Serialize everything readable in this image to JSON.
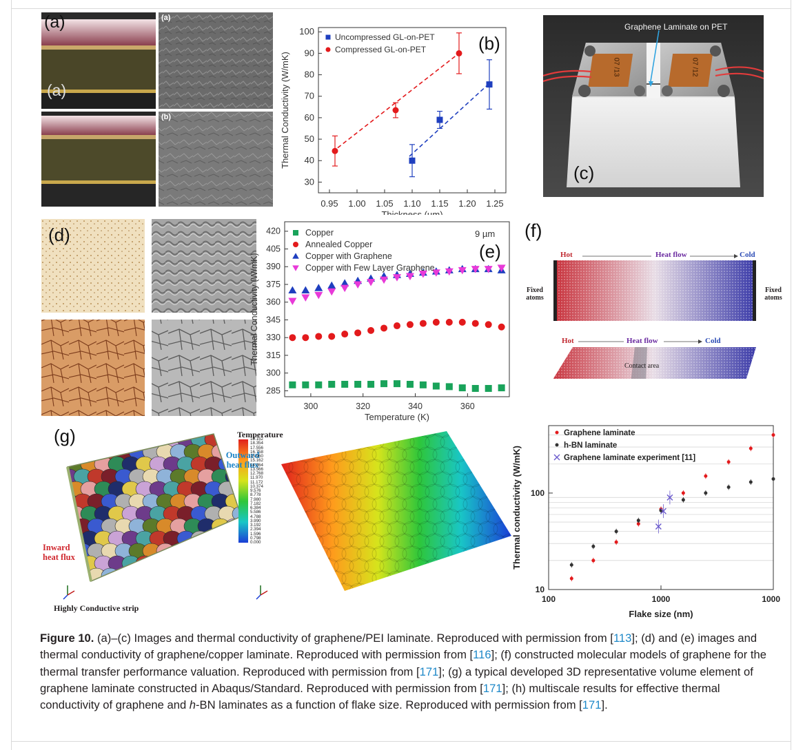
{
  "figure": {
    "caption": {
      "label": "Figure 10.",
      "parts": [
        {
          "t": "(a)–(c) Images and thermal conductivity of graphene/PEI laminate. Reproduced with permission from [",
          "ref": false
        },
        {
          "t": "113",
          "ref": true
        },
        {
          "t": "]; (d) and (e) images and thermal conductivity of graphene/copper laminate. Reproduced with permission from [",
          "ref": false
        },
        {
          "t": "116",
          "ref": true
        },
        {
          "t": "]; (f) constructed molecular models of graphene for the thermal transfer performance valuation. Reproduced with permission from [",
          "ref": false
        },
        {
          "t": "171",
          "ref": true
        },
        {
          "t": "]; (g) a typical developed 3D representative volume element of graphene laminate constructed in Abaqus/Standard. Reproduced with permission from [",
          "ref": false
        },
        {
          "t": "171",
          "ref": true
        },
        {
          "t": "]; (h) multiscale results for effective thermal conductivity of graphene and ",
          "ref": false
        },
        {
          "t": "h",
          "ref": false,
          "italic": true
        },
        {
          "t": "-BN laminates as a function of flake size. Reproduced with permission from [",
          "ref": false
        },
        {
          "t": "171",
          "ref": true
        },
        {
          "t": "].",
          "ref": false
        }
      ]
    },
    "panel_a": {
      "label": "(a)",
      "inner_label": "(a)",
      "sub_a": "(a)",
      "sub_b": "(b)"
    },
    "panel_c": {
      "label": "(c)",
      "annotation": "Graphene Laminate on PET",
      "heater_text_1": "07 /13",
      "heater_text_2": "07 /12"
    },
    "panel_d": {
      "label": "(d)"
    },
    "panel_f": {
      "label": "(f)",
      "top": {
        "hot": "Hot",
        "flow": "Heat flow",
        "cold": "Cold",
        "fixed_left": "Fixed atoms",
        "fixed_right": "Fixed atoms"
      },
      "bottom": {
        "hot": "Hot",
        "flow": "Heat flow",
        "cold": "Cold",
        "contact": "Contact area"
      }
    },
    "panel_g": {
      "label": "(g)",
      "outward": "Outward heat flux",
      "inward": "Inward heat flux",
      "strip": "Highly Conductive strip",
      "legend_title": "Temperature",
      "legend_values": [
        "19.152",
        "18.354",
        "17.556",
        "16.758",
        "15.960",
        "15.162",
        "14.364",
        "13.566",
        "12.768",
        "11.970",
        "11.172",
        "10.374",
        "9.576",
        "8.778",
        "7.980",
        "7.182",
        "6.384",
        "5.586",
        "4.788",
        "3.990",
        "3.192",
        "2.394",
        "1.596",
        "0.798",
        "0.000"
      ]
    },
    "colors": {
      "red": "#e31a1c",
      "blue": "#1f3fbf",
      "green": "#19a35a",
      "magenta": "#e83ad8",
      "ref": "#1e88c8"
    }
  },
  "chart_data": [
    {
      "id": "b",
      "panel_label": "(b)",
      "type": "scatter",
      "xlabel": "Thickness (µm)",
      "ylabel": "Thermal Conductivity (W/mK)",
      "xlim": [
        0.93,
        1.27
      ],
      "ylim": [
        25,
        102
      ],
      "xticks": [
        "0.95",
        "1.00",
        "1.05",
        "1.10",
        "1.15",
        "1.20",
        "1.25"
      ],
      "yticks": [
        "30",
        "40",
        "50",
        "60",
        "70",
        "80",
        "90",
        "100"
      ],
      "legend_position": "top-left",
      "series": [
        {
          "name": "Uncompressed GL-on-PET",
          "color": "#1f3fbf",
          "marker": "square",
          "x": [
            1.1,
            1.15,
            1.24
          ],
          "y": [
            40,
            59,
            75.5
          ],
          "err": [
            7.5,
            4,
            11.5
          ]
        },
        {
          "name": "Compressed GL-on-PET",
          "color": "#e31a1c",
          "marker": "circle",
          "x": [
            0.96,
            1.07,
            1.185
          ],
          "y": [
            44.5,
            63.5,
            90
          ],
          "err": [
            7,
            3.5,
            9.5
          ]
        }
      ],
      "fit_lines": [
        {
          "series": "Uncompressed GL-on-PET",
          "x": [
            1.095,
            1.24
          ],
          "y": [
            42,
            76
          ]
        },
        {
          "series": "Compressed GL-on-PET",
          "x": [
            0.955,
            1.185
          ],
          "y": [
            44,
            90
          ]
        }
      ]
    },
    {
      "id": "e",
      "panel_label": "(e)",
      "type": "scatter",
      "xlabel": "Temperature (K)",
      "ylabel": "Thermal Conductivity (W/mK)",
      "annotation": "9 µm",
      "xlim": [
        290,
        376
      ],
      "ylim": [
        280,
        428
      ],
      "xticks": [
        "300",
        "320",
        "340",
        "360"
      ],
      "yticks": [
        "285",
        "300",
        "315",
        "330",
        "345",
        "360",
        "375",
        "390",
        "405",
        "420"
      ],
      "legend_position": "top-left",
      "series": [
        {
          "name": "Copper",
          "color": "#19a35a",
          "marker": "square",
          "x": [
            293,
            298,
            303,
            308,
            313,
            318,
            323,
            328,
            333,
            338,
            343,
            348,
            353,
            358,
            363,
            368,
            373
          ],
          "y": [
            290,
            290,
            290,
            290.5,
            290.5,
            290.5,
            290.5,
            291,
            291,
            290.5,
            290,
            289,
            288.5,
            287.5,
            287,
            287,
            287.5
          ]
        },
        {
          "name": "Annealed Copper",
          "color": "#e31a1c",
          "marker": "circle",
          "x": [
            293,
            298,
            303,
            308,
            313,
            318,
            323,
            328,
            333,
            338,
            343,
            348,
            353,
            358,
            363,
            368,
            373
          ],
          "y": [
            330,
            330,
            331,
            331,
            333,
            334,
            336,
            338,
            340,
            341,
            342,
            343,
            343,
            343,
            342,
            341,
            339
          ]
        },
        {
          "name": "Copper with Graphene",
          "color": "#1f3fbf",
          "marker": "triangle-up",
          "x": [
            293,
            298,
            303,
            308,
            313,
            318,
            323,
            328,
            333,
            338,
            343,
            348,
            353,
            358,
            363,
            368,
            373
          ],
          "y": [
            370,
            370,
            372,
            374,
            376,
            378,
            380,
            382,
            383,
            384,
            385,
            386,
            387,
            388,
            388,
            388,
            387
          ]
        },
        {
          "name": "Copper with Few Layer Graphene",
          "color": "#e83ad8",
          "marker": "triangle-down",
          "x": [
            293,
            298,
            303,
            308,
            313,
            318,
            323,
            328,
            333,
            338,
            343,
            348,
            353,
            358,
            363,
            368,
            373
          ],
          "y": [
            361,
            364,
            366,
            369,
            372,
            375,
            377,
            379,
            381,
            382,
            384,
            385,
            386,
            387,
            388,
            388,
            389
          ]
        }
      ]
    },
    {
      "id": "h",
      "panel_label": "(h)",
      "type": "scatter",
      "xlabel": "Flake size (nm)",
      "ylabel": "Thermal conductivity (W/mK)",
      "xscale": "log",
      "yscale": "log",
      "xlim": [
        100,
        10000
      ],
      "ylim": [
        10,
        500
      ],
      "xticks": [
        "100",
        "1000",
        "10000"
      ],
      "yticks": [
        "10",
        "100"
      ],
      "legend_position": "top-left",
      "series": [
        {
          "name": "Graphene laminate",
          "color": "#e31a1c",
          "marker": "dot",
          "x": [
            160,
            250,
            400,
            630,
            1000,
            1580,
            2500,
            4000,
            6300,
            10000
          ],
          "y": [
            13,
            20,
            31,
            48,
            68,
            100,
            150,
            210,
            290,
            400
          ]
        },
        {
          "name": "h-BN laminate",
          "color": "#333333",
          "marker": "dot",
          "x": [
            160,
            250,
            400,
            630,
            1000,
            1580,
            2500,
            4000,
            6300,
            10000
          ],
          "y": [
            18,
            28,
            40,
            52,
            66,
            85,
            100,
            115,
            130,
            140
          ]
        },
        {
          "name": "Graphene laminate experiment [11]",
          "color": "#6a5acd",
          "marker": "x",
          "x": [
            950,
            1050,
            1200
          ],
          "y": [
            45,
            65,
            90
          ]
        }
      ]
    }
  ]
}
